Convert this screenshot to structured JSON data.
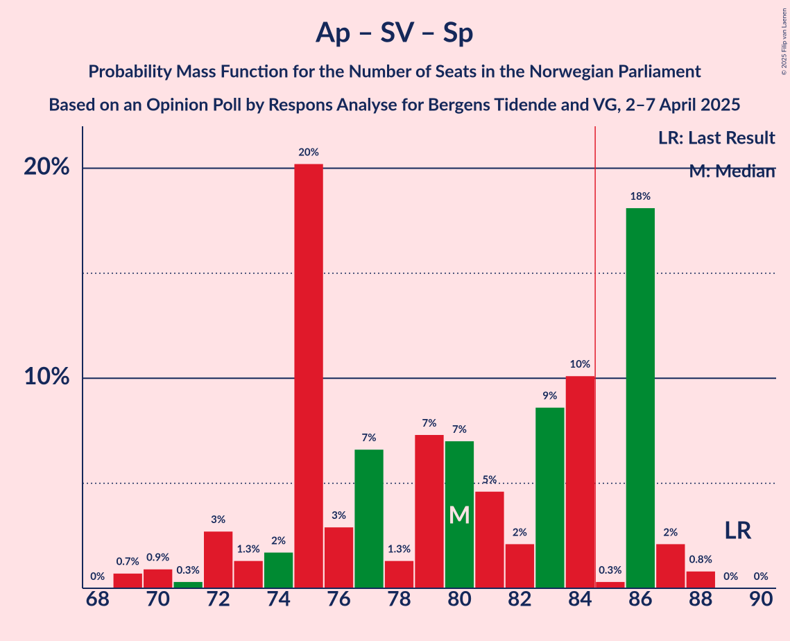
{
  "chart_data": {
    "type": "bar",
    "title": "Ap – SV – Sp",
    "subtitle": [
      "Probability Mass Function for the Number of Seats in the Norwegian Parliament",
      "Based on an Opinion Poll by Respons Analyse for Bergens Tidende and VG, 2–7 April 2025"
    ],
    "x": [
      68,
      69,
      70,
      71,
      72,
      73,
      74,
      75,
      76,
      77,
      78,
      79,
      80,
      81,
      82,
      83,
      84,
      85,
      86,
      87,
      88,
      89,
      90
    ],
    "xlim": [
      67.5,
      90.5
    ],
    "xticks": [
      68,
      70,
      72,
      74,
      76,
      78,
      80,
      82,
      84,
      86,
      88,
      90
    ],
    "ylim": [
      0,
      22
    ],
    "yticks": [
      {
        "value": 10,
        "label": "10%"
      },
      {
        "value": 20,
        "label": "20%"
      }
    ],
    "minor_yticks": [
      5,
      15
    ],
    "series": [
      {
        "values": [
          0,
          0.7,
          0.9,
          0.3,
          2.7,
          1.3,
          1.7,
          20.2,
          2.9,
          6.6,
          1.3,
          7.3,
          7.0,
          4.6,
          2.1,
          8.6,
          10.1,
          0.3,
          18.1,
          2.1,
          0.8,
          0,
          0
        ],
        "value_labels": [
          "0%",
          "0.7%",
          "0.9%",
          "0.3%",
          "3%",
          "1.3%",
          "2%",
          "20%",
          "3%",
          "7%",
          "1.3%",
          "7%",
          "7%",
          "5%",
          "2%",
          "9%",
          "10%",
          "0.3%",
          "18%",
          "2%",
          "0.8%",
          "0%",
          "0%"
        ],
        "colors": [
          "#008a32",
          "#e0192a",
          "#e0192a",
          "#008a32",
          "#e0192a",
          "#e0192a",
          "#008a32",
          "#e0192a",
          "#e0192a",
          "#008a32",
          "#e0192a",
          "#e0192a",
          "#008a32",
          "#e0192a",
          "#e0192a",
          "#008a32",
          "#e0192a",
          "#e0192a",
          "#008a32",
          "#e0192a",
          "#e0192a",
          "#008a32",
          "#e0192a"
        ]
      }
    ],
    "majority_line": 84.5,
    "majority_color": "#e0192a",
    "median": 80,
    "median_label": "M",
    "last_result": 89,
    "last_result_label": "LR",
    "legend": [
      "LR: Last Result",
      "M: Median"
    ],
    "copyright": "© 2025 Filip van Laenen"
  }
}
